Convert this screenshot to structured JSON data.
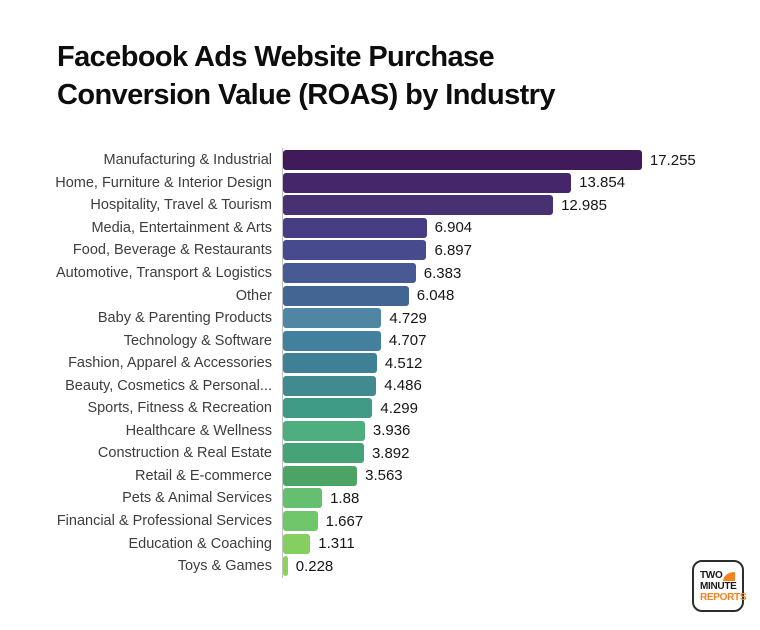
{
  "title": {
    "line1": "Facebook Ads Website Purchase",
    "line2": "Conversion Value (ROAS) by Industry",
    "color": "#0d0d0d"
  },
  "chart_data": {
    "type": "bar",
    "orientation": "horizontal",
    "title": "Facebook Ads Website Purchase Conversion Value (ROAS) by Industry",
    "xlabel": "",
    "ylabel": "",
    "xlim": [
      0,
      18
    ],
    "grid": false,
    "legend": "none",
    "categories": [
      "Manufacturing & Industrial",
      "Home, Furniture & Interior Design",
      "Hospitality, Travel & Tourism",
      "Media, Entertainment & Arts",
      "Food, Beverage & Restaurants",
      "Automotive, Transport & Logistics",
      "Other",
      "Baby & Parenting Products",
      "Technology & Software",
      "Fashion, Apparel & Accessories",
      "Beauty, Cosmetics & Personal...",
      "Sports, Fitness & Recreation",
      "Healthcare & Wellness",
      "Construction & Real Estate",
      "Retail & E-commerce",
      "Pets & Animal Services",
      "Financial & Professional Services",
      "Education & Coaching",
      "Toys & Games"
    ],
    "values": [
      17.255,
      13.854,
      12.985,
      6.904,
      6.897,
      6.383,
      6.048,
      4.729,
      4.707,
      4.512,
      4.486,
      4.299,
      3.936,
      3.892,
      3.563,
      1.88,
      1.667,
      1.311,
      0.228
    ],
    "value_labels": [
      "17.255",
      "13.854",
      "12.985",
      "6.904",
      "6.897",
      "6.383",
      "6.048",
      "4.729",
      "4.707",
      "4.512",
      "4.486",
      "4.299",
      "3.936",
      "3.892",
      "3.563",
      "1.88",
      "1.667",
      "1.311",
      "0.228"
    ],
    "bar_colors": [
      "#411a5c",
      "#46266b",
      "#483173",
      "#473d84",
      "#474a8d",
      "#475a93",
      "#426593",
      "#4f86a3",
      "#43809d",
      "#3e8094",
      "#418b90",
      "#3f9b85",
      "#4fae7e",
      "#45a377",
      "#4ba465",
      "#64bf70",
      "#70c66a",
      "#84cf60",
      "#8bd35f"
    ],
    "axis_line_color": "#c2c2c2",
    "label_color": "#3d3d3d",
    "value_color": "#161616"
  },
  "logo": {
    "line1": "TWO",
    "line2": "MINUTE",
    "line3": "REPORTS",
    "accent_color": "#f58220",
    "border_color": "#2d2d2d"
  }
}
